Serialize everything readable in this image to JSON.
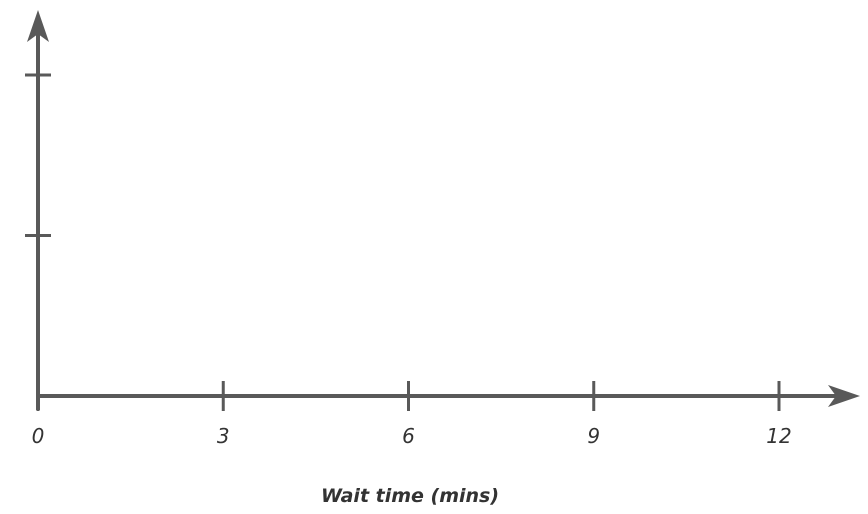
{
  "chart_data": {
    "type": "line",
    "title": "",
    "xlabel": "Wait time (mins)",
    "ylabel": "",
    "x_ticks": [
      0,
      3,
      6,
      9,
      12
    ],
    "x_tick_labels": [
      "0",
      "3",
      "6",
      "9",
      "12"
    ],
    "xlim": [
      0,
      12
    ],
    "y_ticks": [
      1,
      2
    ],
    "ylim": [
      0,
      2
    ],
    "grid": false,
    "series": [],
    "colors": {
      "axis": "#595959",
      "text": "#333333"
    }
  }
}
